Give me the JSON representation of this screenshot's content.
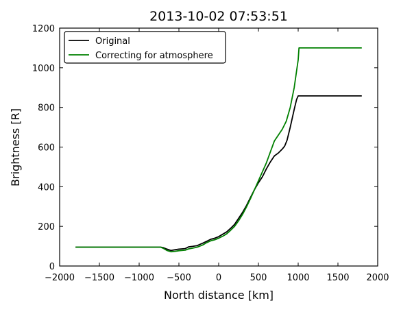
{
  "chart_data": {
    "type": "line",
    "title": "2013-10-02 07:53:51",
    "xlabel": "North distance [km]",
    "ylabel": "Brightness [R]",
    "xlim": [
      -2000,
      2000
    ],
    "ylim": [
      0,
      1200
    ],
    "xticks": [
      -2000,
      -1500,
      -1000,
      -500,
      0,
      500,
      1000,
      1500,
      2000
    ],
    "yticks": [
      0,
      200,
      400,
      600,
      800,
      1000,
      1200
    ],
    "grid": false,
    "legend_position": "top-left",
    "series": [
      {
        "name": "Original",
        "color": "#000000",
        "points": [
          [
            -1800,
            95
          ],
          [
            -1400,
            95
          ],
          [
            -1000,
            95
          ],
          [
            -730,
            95
          ],
          [
            -700,
            93
          ],
          [
            -650,
            85
          ],
          [
            -600,
            78
          ],
          [
            -550,
            82
          ],
          [
            -500,
            85
          ],
          [
            -420,
            88
          ],
          [
            -380,
            96
          ],
          [
            -330,
            99
          ],
          [
            -270,
            103
          ],
          [
            -200,
            115
          ],
          [
            -150,
            125
          ],
          [
            -100,
            135
          ],
          [
            -50,
            140
          ],
          [
            0,
            148
          ],
          [
            50,
            160
          ],
          [
            100,
            172
          ],
          [
            150,
            190
          ],
          [
            200,
            210
          ],
          [
            250,
            240
          ],
          [
            300,
            270
          ],
          [
            350,
            305
          ],
          [
            400,
            345
          ],
          [
            450,
            385
          ],
          [
            500,
            420
          ],
          [
            550,
            450
          ],
          [
            600,
            490
          ],
          [
            650,
            525
          ],
          [
            700,
            555
          ],
          [
            750,
            570
          ],
          [
            800,
            590
          ],
          [
            830,
            605
          ],
          [
            860,
            635
          ],
          [
            900,
            700
          ],
          [
            950,
            790
          ],
          [
            980,
            840
          ],
          [
            1000,
            858
          ],
          [
            1100,
            858
          ],
          [
            1400,
            858
          ],
          [
            1800,
            858
          ]
        ]
      },
      {
        "name": "Correcting for atmosphere",
        "color": "#008000",
        "points": [
          [
            -1800,
            95
          ],
          [
            -1400,
            95
          ],
          [
            -1000,
            95
          ],
          [
            -730,
            95
          ],
          [
            -700,
            90
          ],
          [
            -650,
            78
          ],
          [
            -600,
            72
          ],
          [
            -550,
            74
          ],
          [
            -500,
            77
          ],
          [
            -420,
            80
          ],
          [
            -380,
            86
          ],
          [
            -330,
            90
          ],
          [
            -270,
            95
          ],
          [
            -200,
            106
          ],
          [
            -150,
            118
          ],
          [
            -100,
            127
          ],
          [
            -50,
            132
          ],
          [
            0,
            140
          ],
          [
            50,
            150
          ],
          [
            100,
            162
          ],
          [
            150,
            180
          ],
          [
            200,
            200
          ],
          [
            250,
            228
          ],
          [
            300,
            260
          ],
          [
            350,
            298
          ],
          [
            400,
            340
          ],
          [
            450,
            385
          ],
          [
            500,
            430
          ],
          [
            550,
            475
          ],
          [
            600,
            520
          ],
          [
            650,
            575
          ],
          [
            700,
            630
          ],
          [
            750,
            660
          ],
          [
            800,
            690
          ],
          [
            850,
            730
          ],
          [
            900,
            800
          ],
          [
            950,
            900
          ],
          [
            1000,
            1040
          ],
          [
            1010,
            1100
          ],
          [
            1400,
            1100
          ],
          [
            1800,
            1100
          ]
        ]
      }
    ]
  }
}
